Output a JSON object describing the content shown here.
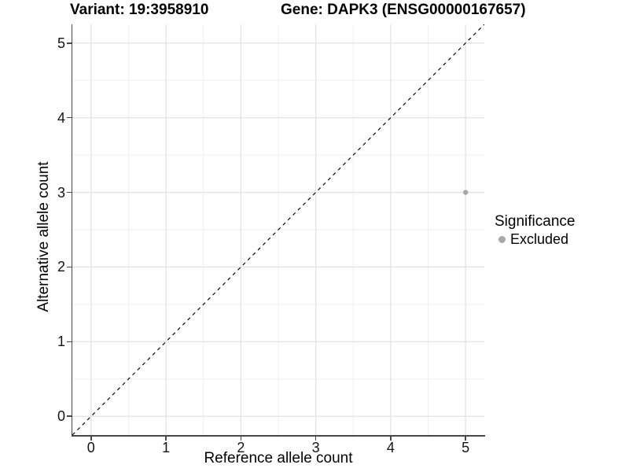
{
  "chart_data": {
    "type": "scatter",
    "title_left": "Variant: 19:3958910",
    "title_right": "Gene: DAPK3 (ENSG00000167657)",
    "xlabel": "Reference allele count",
    "ylabel": "Alternative allele count",
    "xlim": [
      -0.25,
      5.25
    ],
    "ylim": [
      -0.25,
      5.25
    ],
    "x_ticks": [
      0,
      1,
      2,
      3,
      4,
      5
    ],
    "y_ticks": [
      0,
      1,
      2,
      3,
      4,
      5
    ],
    "grid": {
      "major": true,
      "minor": true,
      "minor_step": 0.5
    },
    "series": [
      {
        "name": "Excluded",
        "color": "#a8a8a8",
        "points": [
          {
            "x": 5,
            "y": 3
          }
        ]
      }
    ],
    "reference_line": {
      "kind": "identity y=x",
      "linestyle": "dashed",
      "color": "#000000"
    },
    "legend": {
      "position": "right",
      "title": "Significance",
      "entries": [
        {
          "label": "Excluded",
          "color": "#a8a8a8"
        }
      ]
    }
  },
  "colors": {
    "background": "#ffffff",
    "grid_major": "#e3e3e3",
    "grid_minor": "#eeeeee",
    "axis_line": "#474747",
    "tick_text": "#141414",
    "point": "#a8a8a8",
    "reference_line": "#000000"
  }
}
